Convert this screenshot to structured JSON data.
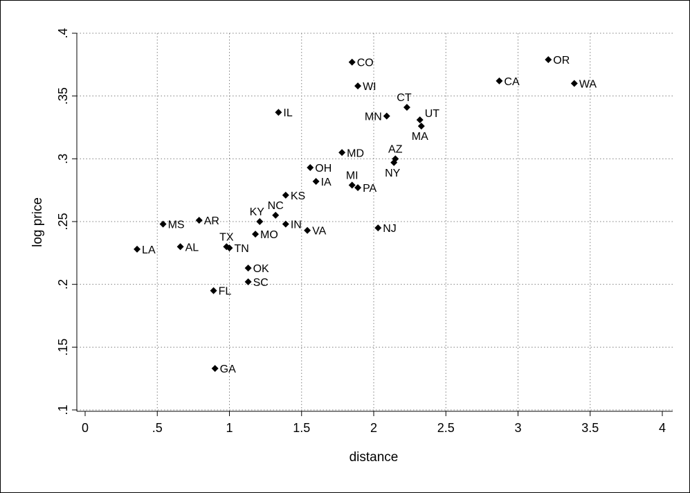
{
  "chart_data": {
    "type": "scatter",
    "xlabel": "distance",
    "ylabel": "log price",
    "xlim": [
      0,
      4
    ],
    "ylim": [
      0.1,
      0.4
    ],
    "xticks": [
      0,
      0.5,
      1,
      1.5,
      2,
      2.5,
      3,
      3.5,
      4
    ],
    "xtick_labels": [
      "0",
      ".5",
      "1",
      "1.5",
      "2",
      "2.5",
      "3",
      "3.5",
      "4"
    ],
    "yticks": [
      0.1,
      0.15,
      0.2,
      0.25,
      0.3,
      0.35,
      0.4
    ],
    "ytick_labels": [
      ".1",
      ".15",
      ".2",
      ".25",
      ".3",
      ".35",
      ".4"
    ],
    "grid": "horizontal dotted",
    "marker": "diamond",
    "marker_color": "#000000",
    "points": [
      {
        "label": "CO",
        "x": 1.85,
        "y": 0.377,
        "pos": "right"
      },
      {
        "label": "OR",
        "x": 3.21,
        "y": 0.379,
        "pos": "right"
      },
      {
        "label": "CA",
        "x": 2.87,
        "y": 0.362,
        "pos": "right"
      },
      {
        "label": "WA",
        "x": 3.39,
        "y": 0.36,
        "pos": "right"
      },
      {
        "label": "WI",
        "x": 1.89,
        "y": 0.358,
        "pos": "right"
      },
      {
        "label": "CT",
        "x": 2.23,
        "y": 0.341,
        "pos": "above-left"
      },
      {
        "label": "IL",
        "x": 1.34,
        "y": 0.337,
        "pos": "right"
      },
      {
        "label": "MN",
        "x": 2.09,
        "y": 0.334,
        "pos": "left"
      },
      {
        "label": "UT",
        "x": 2.32,
        "y": 0.331,
        "pos": "above-right"
      },
      {
        "label": "MA",
        "x": 2.33,
        "y": 0.326,
        "pos": "below"
      },
      {
        "label": "MD",
        "x": 1.78,
        "y": 0.305,
        "pos": "right"
      },
      {
        "label": "AZ",
        "x": 2.15,
        "y": 0.3,
        "pos": "above"
      },
      {
        "label": "NY",
        "x": 2.14,
        "y": 0.297,
        "pos": "below"
      },
      {
        "label": "OH",
        "x": 1.56,
        "y": 0.293,
        "pos": "right"
      },
      {
        "label": "IA",
        "x": 1.6,
        "y": 0.282,
        "pos": "right"
      },
      {
        "label": "MI",
        "x": 1.85,
        "y": 0.279,
        "pos": "above"
      },
      {
        "label": "PA",
        "x": 1.89,
        "y": 0.277,
        "pos": "right"
      },
      {
        "label": "KS",
        "x": 1.39,
        "y": 0.271,
        "pos": "right"
      },
      {
        "label": "NC",
        "x": 1.32,
        "y": 0.255,
        "pos": "above"
      },
      {
        "label": "KY",
        "x": 1.21,
        "y": 0.25,
        "pos": "above-left"
      },
      {
        "label": "AR",
        "x": 0.79,
        "y": 0.251,
        "pos": "right"
      },
      {
        "label": "MS",
        "x": 0.54,
        "y": 0.248,
        "pos": "right"
      },
      {
        "label": "IN",
        "x": 1.39,
        "y": 0.248,
        "pos": "right"
      },
      {
        "label": "NJ",
        "x": 2.03,
        "y": 0.245,
        "pos": "right"
      },
      {
        "label": "VA",
        "x": 1.54,
        "y": 0.243,
        "pos": "right"
      },
      {
        "label": "MO",
        "x": 1.18,
        "y": 0.24,
        "pos": "right"
      },
      {
        "label": "AL",
        "x": 0.66,
        "y": 0.23,
        "pos": "right"
      },
      {
        "label": "TX",
        "x": 0.98,
        "y": 0.23,
        "pos": "above"
      },
      {
        "label": "TN",
        "x": 1.0,
        "y": 0.229,
        "pos": "right"
      },
      {
        "label": "LA",
        "x": 0.36,
        "y": 0.228,
        "pos": "right"
      },
      {
        "label": "OK",
        "x": 1.13,
        "y": 0.213,
        "pos": "right"
      },
      {
        "label": "SC",
        "x": 1.13,
        "y": 0.202,
        "pos": "right"
      },
      {
        "label": "FL",
        "x": 0.89,
        "y": 0.195,
        "pos": "right"
      },
      {
        "label": "GA",
        "x": 0.9,
        "y": 0.133,
        "pos": "right"
      }
    ]
  }
}
